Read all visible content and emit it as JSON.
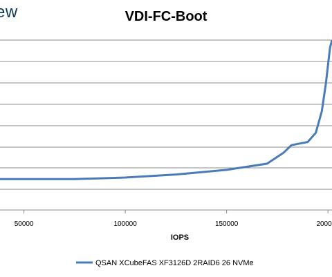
{
  "brand": {
    "logo_text": "ew"
  },
  "chart_data": {
    "type": "line",
    "title": "VDI-FC-Boot",
    "xlabel": "IOPS",
    "ylabel": "",
    "x_ticks": [
      50000,
      100000,
      150000,
      200000
    ],
    "x_tick_labels": [
      "50000",
      "100000",
      "150000",
      "200000"
    ],
    "xlim": [
      37500,
      202000
    ],
    "grid": true,
    "legend_position": "bottom",
    "series_color": "#4a7ab8",
    "series": [
      {
        "name": "QSAN XCubeFAS XF3126D 2RAID6 26 NVMe",
        "x": [
          37500,
          50000,
          75000,
          100000,
          125000,
          150000,
          170000,
          178000,
          182000,
          186000,
          190000,
          194000,
          197000,
          199000,
          201000,
          202000
        ],
        "y": [
          0.2,
          0.2,
          0.2,
          0.21,
          0.23,
          0.26,
          0.3,
          0.37,
          0.42,
          0.43,
          0.44,
          0.5,
          0.64,
          0.82,
          1.05,
          1.1
        ]
      }
    ]
  }
}
